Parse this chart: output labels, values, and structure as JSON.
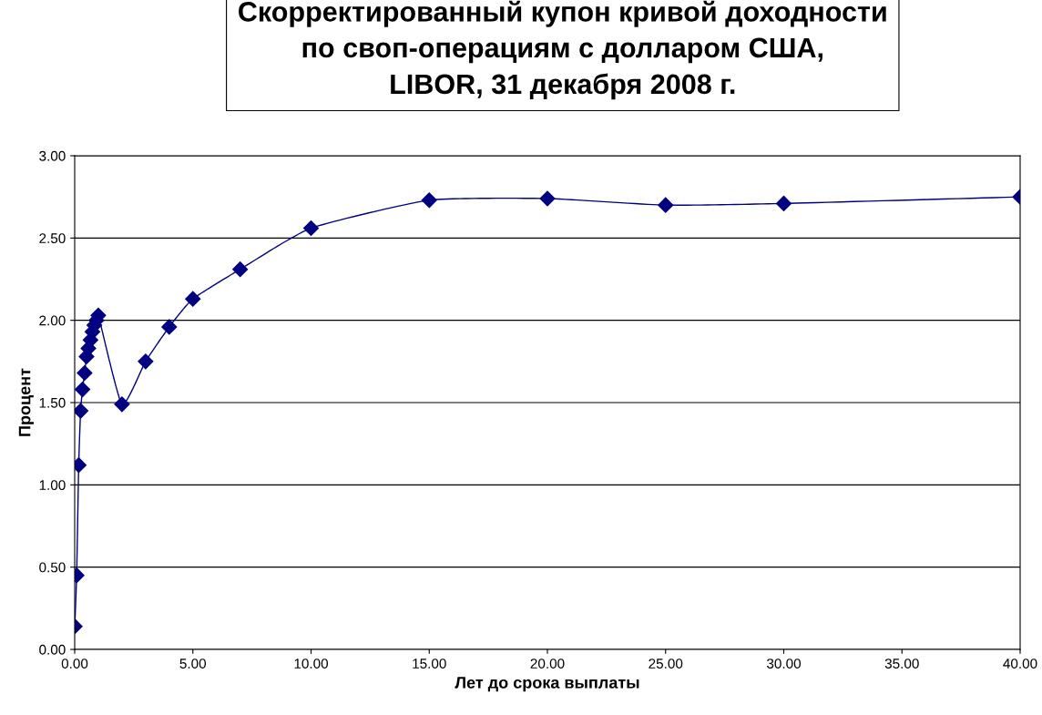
{
  "chart_data": {
    "type": "line",
    "title": "Скорректированный купон кривой доходности\nпо своп-операциям с долларом США,\nLIBOR, 31 декабря 2008 г.",
    "xlabel": "Лет до срока выплаты",
    "ylabel": "Процент",
    "x": [
      0.003,
      0.083,
      0.17,
      0.25,
      0.33,
      0.42,
      0.5,
      0.58,
      0.67,
      0.75,
      0.83,
      0.92,
      1.0,
      2,
      3,
      4,
      5,
      7,
      10,
      15,
      20,
      25,
      30,
      40
    ],
    "series": [
      {
        "color": "#000080",
        "values": [
          0.14,
          0.45,
          1.12,
          1.45,
          1.58,
          1.68,
          1.78,
          1.83,
          1.88,
          1.93,
          1.97,
          2.0,
          2.03,
          1.49,
          1.75,
          1.96,
          2.13,
          2.31,
          2.56,
          2.73,
          2.74,
          2.7,
          2.71,
          2.75
        ]
      }
    ],
    "xlim": [
      0,
      40
    ],
    "xticks": [
      {
        "value": 0,
        "label": "0.00"
      },
      {
        "value": 5,
        "label": "5.00"
      },
      {
        "value": 10,
        "label": "10.00"
      },
      {
        "value": 15,
        "label": "15.00"
      },
      {
        "value": 20,
        "label": "20.00"
      },
      {
        "value": 25,
        "label": "25.00"
      },
      {
        "value": 30,
        "label": "30.00"
      },
      {
        "value": 35,
        "label": "35.00"
      },
      {
        "value": 40,
        "label": "40.00"
      }
    ],
    "ylim": [
      0,
      3
    ],
    "yticks": [
      {
        "value": 0,
        "label": "0.00"
      },
      {
        "value": 0.5,
        "label": "0.50"
      },
      {
        "value": 1,
        "label": "1.00"
      },
      {
        "value": 1.5,
        "label": "1.50"
      },
      {
        "value": 2,
        "label": "2.00"
      },
      {
        "value": 2.5,
        "label": "2.50"
      },
      {
        "value": 3,
        "label": "3.00"
      }
    ],
    "grid": "y",
    "marker": "diamond",
    "line_style": "solid",
    "legend": false
  }
}
